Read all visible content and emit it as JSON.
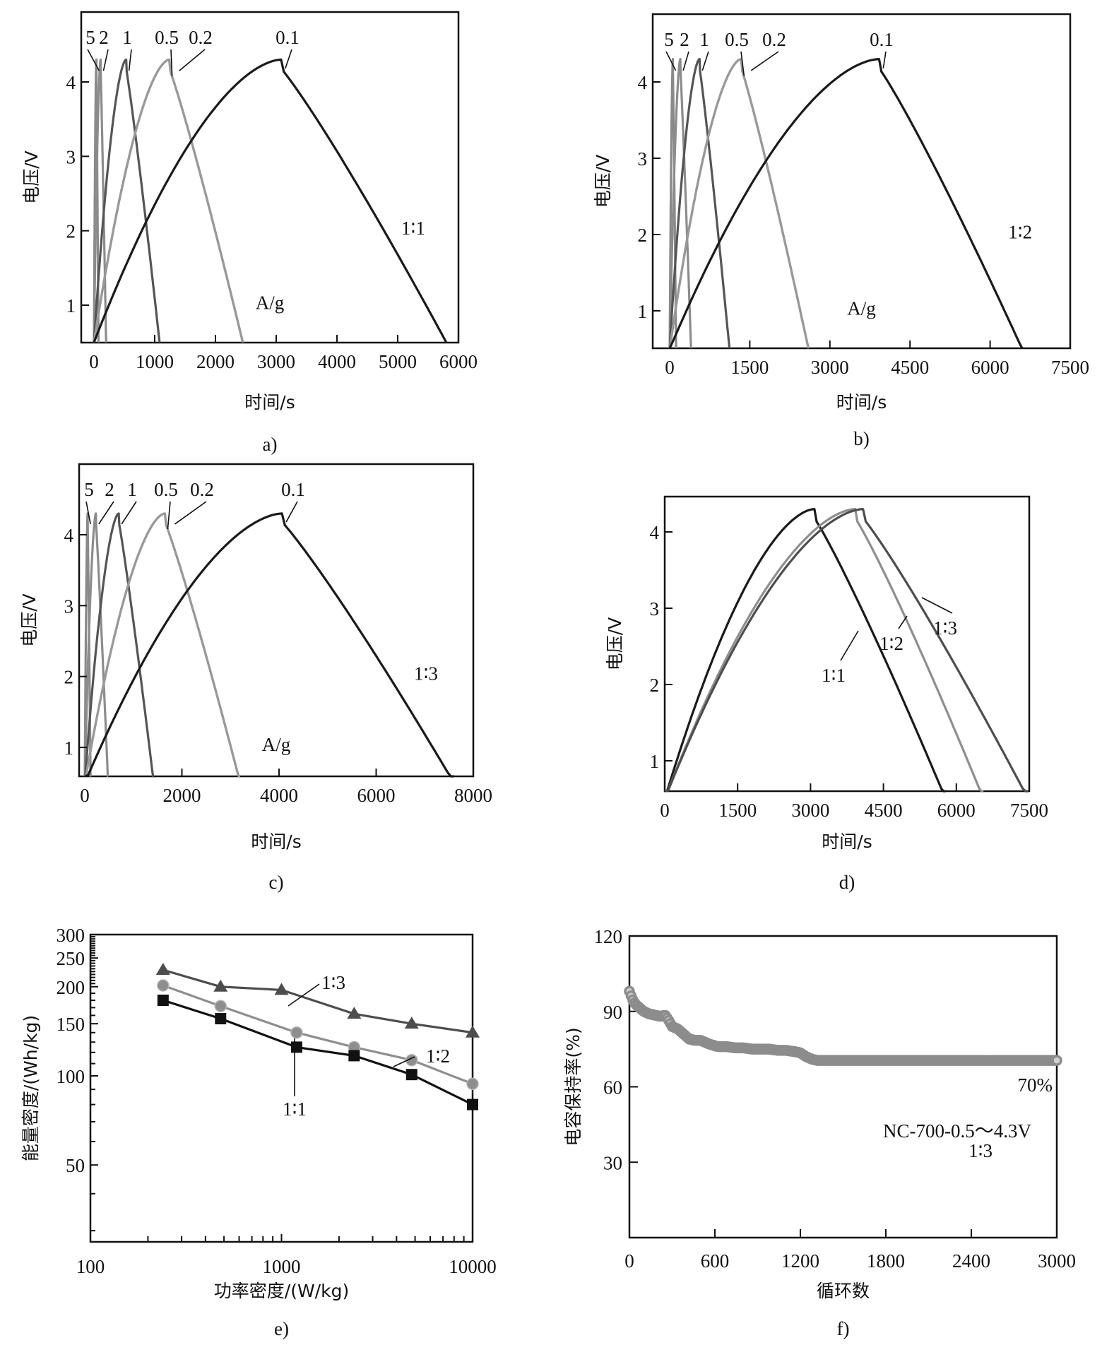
{
  "chart_data": [
    {
      "id": "a",
      "type": "line",
      "panel_label": "a)",
      "xlabel": "时间/s",
      "ylabel": "电压/V",
      "xlim": [
        0,
        6000
      ],
      "ylim": [
        0.5,
        4.95
      ],
      "xticks": [
        "0",
        "1000",
        "2000",
        "3000",
        "4000",
        "5000",
        "6000"
      ],
      "xtick_values": [
        0,
        1000,
        2000,
        3000,
        4000,
        5000,
        6000
      ],
      "yticks": [
        "1",
        "2",
        "3",
        "4"
      ],
      "ytick_values": [
        1,
        2,
        3,
        4
      ],
      "annotations": {
        "ratio": "1∶1",
        "unit": "A/g"
      },
      "series": [
        {
          "name": "5",
          "color": "#8a8a8a",
          "charge_end": 40,
          "discharge_end": 75,
          "peak": 4.3
        },
        {
          "name": "2",
          "color": "#8c8c8c",
          "charge_end": 110,
          "discharge_end": 200,
          "peak": 4.3
        },
        {
          "name": "1",
          "color": "#555555",
          "charge_end": 530,
          "discharge_end": 1080,
          "peak": 4.3
        },
        {
          "name": "0.5",
          "color": "#8e8e8e",
          "charge_end": 1240,
          "discharge_end": 2450,
          "peak": 4.3
        },
        {
          "name": "0.2",
          "color": "#999999",
          "charge_end": 1240,
          "discharge_end": 2450,
          "peak": 4.3
        },
        {
          "name": "0.1",
          "color": "#1a1a1a",
          "charge_end": 3080,
          "discharge_end": 5800,
          "peak": 4.3
        }
      ]
    },
    {
      "id": "b",
      "type": "line",
      "panel_label": "b)",
      "xlabel": "时间/s",
      "ylabel": "电压/V",
      "xlim": [
        0,
        7500
      ],
      "ylim": [
        0.5,
        4.95
      ],
      "xticks": [
        "0",
        "1500",
        "3000",
        "4500",
        "6000",
        "7500"
      ],
      "xtick_values": [
        0,
        1500,
        3000,
        4500,
        6000,
        7500
      ],
      "yticks": [
        "1",
        "2",
        "3",
        "4"
      ],
      "ytick_values": [
        1,
        2,
        3,
        4
      ],
      "annotations": {
        "ratio": "1∶2",
        "unit": "A/g"
      },
      "series": [
        {
          "name": "5",
          "color": "#8a8a8a",
          "charge_end": 60,
          "discharge_end": 120,
          "peak": 4.3
        },
        {
          "name": "2",
          "color": "#8c8c8c",
          "charge_end": 200,
          "discharge_end": 400,
          "peak": 4.3
        },
        {
          "name": "1",
          "color": "#555555",
          "charge_end": 560,
          "discharge_end": 1120,
          "peak": 4.3
        },
        {
          "name": "0.5",
          "color": "#8e8e8e",
          "charge_end": 1340,
          "discharge_end": 2600,
          "peak": 4.3
        },
        {
          "name": "0.2",
          "color": "#999999",
          "charge_end": 1340,
          "discharge_end": 2600,
          "peak": 4.3
        },
        {
          "name": "0.1",
          "color": "#1a1a1a",
          "charge_end": 3920,
          "discharge_end": 6600,
          "peak": 4.3
        }
      ]
    },
    {
      "id": "c",
      "type": "line",
      "panel_label": "c)",
      "xlabel": "时间/s",
      "ylabel": "电压/V",
      "xlim": [
        0,
        8000
      ],
      "ylim": [
        0.5,
        4.95
      ],
      "xticks": [
        "0",
        "2000",
        "4000",
        "6000",
        "8000"
      ],
      "xtick_values": [
        0,
        2000,
        4000,
        6000,
        8000
      ],
      "yticks": [
        "1",
        "2",
        "3",
        "4"
      ],
      "ytick_values": [
        1,
        2,
        3,
        4
      ],
      "annotations": {
        "ratio": "1∶3",
        "unit": "A/g"
      },
      "series": [
        {
          "name": "5",
          "color": "#8a8a8a",
          "charge_end": 60,
          "discharge_end": 120,
          "peak": 4.3
        },
        {
          "name": "2",
          "color": "#8c8c8c",
          "charge_end": 230,
          "discharge_end": 480,
          "peak": 4.3
        },
        {
          "name": "1",
          "color": "#555555",
          "charge_end": 700,
          "discharge_end": 1420,
          "peak": 4.3
        },
        {
          "name": "0.5",
          "color": "#8e8e8e",
          "charge_end": 1650,
          "discharge_end": 3200,
          "peak": 4.3
        },
        {
          "name": "0.2",
          "color": "#999999",
          "charge_end": 1650,
          "discharge_end": 3200,
          "peak": 4.3
        },
        {
          "name": "0.1",
          "color": "#1a1a1a",
          "charge_end": 4060,
          "discharge_end": 7600,
          "peak": 4.3
        }
      ]
    },
    {
      "id": "d",
      "type": "line",
      "panel_label": "d)",
      "xlabel": "时间/s",
      "ylabel": "电压/V",
      "xlim": [
        0,
        7500
      ],
      "ylim": [
        0.5,
        4.45
      ],
      "xticks": [
        "0",
        "1500",
        "3000",
        "4500",
        "6000",
        "7500"
      ],
      "xtick_values": [
        0,
        1500,
        3000,
        4500,
        6000,
        7500
      ],
      "yticks": [
        "1",
        "2",
        "3",
        "4"
      ],
      "ytick_values": [
        1,
        2,
        3,
        4
      ],
      "series": [
        {
          "name": "1∶1",
          "color": "#1a1a1a",
          "charge_end": 3080,
          "discharge_end": 5780,
          "peak": 4.3
        },
        {
          "name": "1∶2",
          "color": "#8e8e8e",
          "charge_end": 3920,
          "discharge_end": 6560,
          "peak": 4.3
        },
        {
          "name": "1∶3",
          "color": "#4d4d4d",
          "charge_end": 4080,
          "discharge_end": 7480,
          "peak": 4.3
        }
      ]
    },
    {
      "id": "e",
      "type": "line",
      "panel_label": "e)",
      "xlabel": "功率密度/(W/kg)",
      "ylabel": "能量密度/(Wh/kg)",
      "xscale": "log",
      "yscale": "log",
      "xlim": [
        100,
        10000
      ],
      "ylim": [
        27.5,
        300
      ],
      "xticks": [
        "100",
        "1000",
        "10000"
      ],
      "xtick_values": [
        100,
        1000,
        10000
      ],
      "yticks": [
        "50",
        "100",
        "150",
        "200",
        "250",
        "300"
      ],
      "ytick_values": [
        50,
        100,
        150,
        200,
        250,
        300
      ],
      "series": [
        {
          "name": "1∶3",
          "marker": "triangle",
          "color": "#4d4d4d",
          "x": [
            240,
            480,
            1000,
            2400,
            4800,
            10000
          ],
          "y": [
            228,
            200,
            195,
            162,
            150,
            140
          ]
        },
        {
          "name": "1∶2",
          "marker": "circle",
          "color": "#8e8e8e",
          "x": [
            240,
            480,
            1200,
            2400,
            4800,
            10000
          ],
          "y": [
            202,
            172,
            140,
            125,
            113,
            94
          ]
        },
        {
          "name": "1∶1",
          "marker": "square",
          "color": "#111111",
          "x": [
            240,
            480,
            1200,
            2400,
            4800,
            10000
          ],
          "y": [
            180,
            156,
            125,
            117,
            101,
            80
          ]
        }
      ]
    },
    {
      "id": "f",
      "type": "scatter",
      "panel_label": "f)",
      "xlabel": "循环数",
      "ylabel": "电容保持率(%)",
      "xlim": [
        0,
        3000
      ],
      "ylim": [
        0,
        120
      ],
      "xticks": [
        "0",
        "600",
        "1200",
        "1800",
        "2400",
        "3000"
      ],
      "xtick_values": [
        0,
        600,
        1200,
        1800,
        2400,
        3000
      ],
      "yticks": [
        "30",
        "60",
        "90",
        "120"
      ],
      "ytick_values": [
        30,
        60,
        90,
        120
      ],
      "annotations": {
        "final": "70%",
        "condition": "NC-700-0.5～4.3V",
        "ratio": "1∶3"
      },
      "series": [
        {
          "name": "NC-700 1∶3",
          "color": "#8c8c8c",
          "x": [
            0,
            20,
            40,
            60,
            80,
            100,
            140,
            180,
            220,
            250,
            270,
            300,
            340,
            380,
            420,
            460,
            500,
            560,
            620,
            680,
            740,
            800,
            860,
            920,
            980,
            1040,
            1100,
            1160,
            1200,
            1240,
            1280,
            1320,
            1360,
            1400,
            1600,
            1800,
            2000,
            2200,
            2400,
            2600,
            2800,
            3000
          ],
          "y": [
            98,
            95,
            93,
            92,
            91,
            90,
            89,
            88.5,
            88,
            88.5,
            87,
            84,
            83,
            81,
            79,
            78.5,
            78.5,
            77,
            76,
            76,
            75.5,
            75.5,
            75,
            75,
            75,
            74.5,
            74.5,
            74,
            73.5,
            72,
            71,
            70.5,
            70.5,
            70.5,
            70.5,
            70.5,
            70.5,
            70.5,
            70.5,
            70.5,
            70.5,
            70.5
          ]
        }
      ]
    }
  ]
}
